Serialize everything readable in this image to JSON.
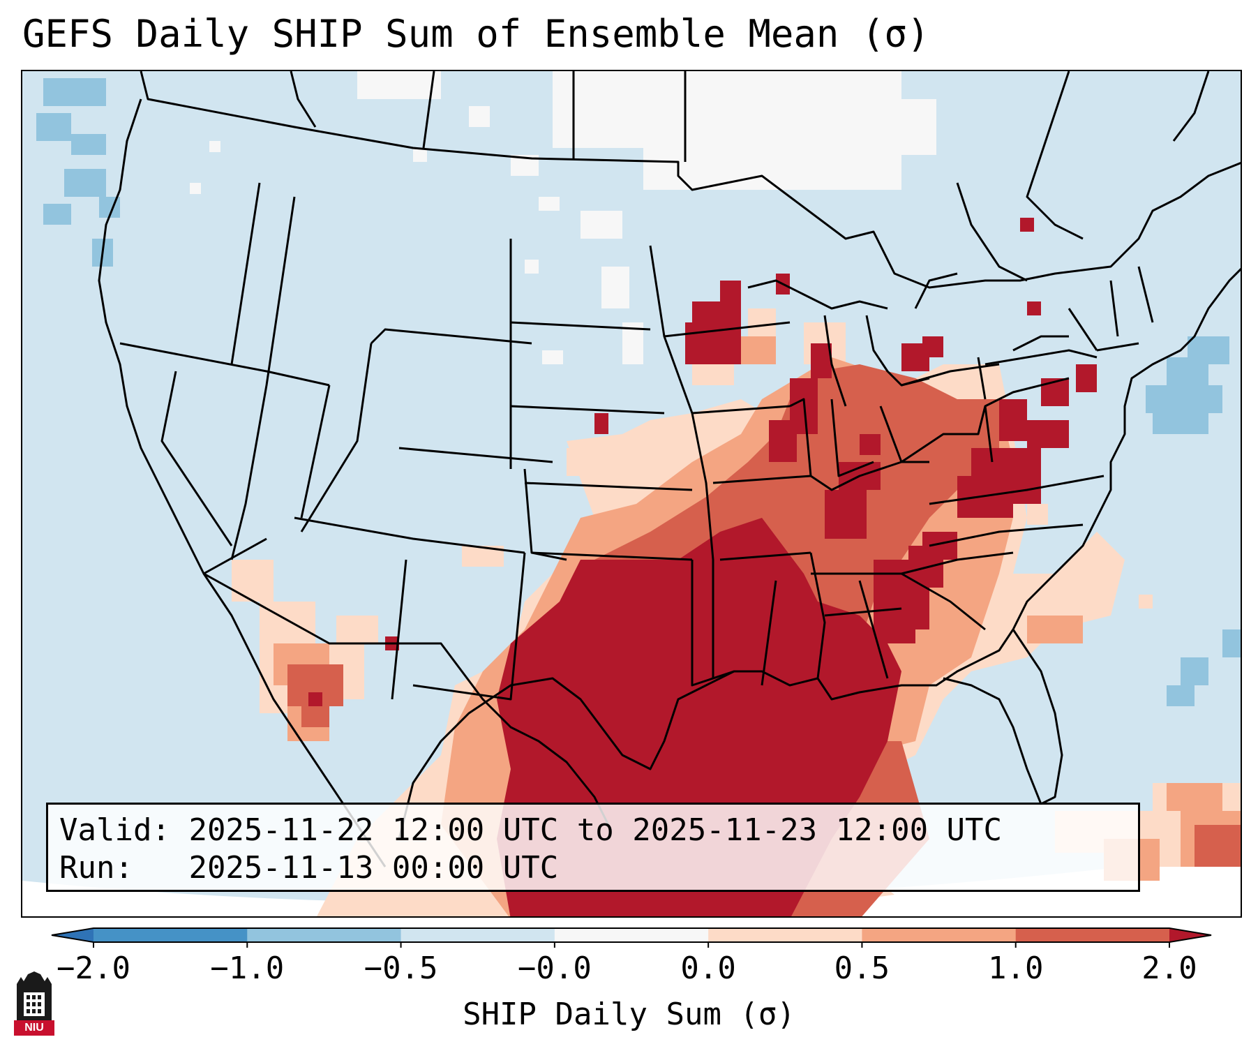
{
  "title": "GEFS Daily SHIP Sum of Ensemble Mean (σ)",
  "info": {
    "valid_label": "Valid:",
    "valid_value": "2025-11-22 12:00 UTC to 2025-11-23 12:00 UTC",
    "run_label": "Run:",
    "run_value": "2025-11-13 00:00 UTC"
  },
  "colorbar": {
    "label": "SHIP Daily Sum (σ)",
    "ticks": [
      "−2.0",
      "−1.0",
      "−0.5",
      "−0.0",
      "0.0",
      "0.5",
      "1.0",
      "2.0"
    ],
    "bins": [
      {
        "from": "-inf",
        "to": -2.0,
        "color": "#2f73b6"
      },
      {
        "from": -2.0,
        "to": -1.0,
        "color": "#4592c6"
      },
      {
        "from": -1.0,
        "to": -0.5,
        "color": "#92c4de"
      },
      {
        "from": -0.5,
        "to": -0.0,
        "color": "#d1e5f0"
      },
      {
        "from": -0.0,
        "to": 0.0,
        "color": "#f7f7f7"
      },
      {
        "from": 0.0,
        "to": 0.5,
        "color": "#fddbc7"
      },
      {
        "from": 0.5,
        "to": 1.0,
        "color": "#f4a582"
      },
      {
        "from": 1.0,
        "to": 2.0,
        "color": "#d6604d"
      },
      {
        "from": 2.0,
        "to": "inf",
        "color": "#b2182b"
      }
    ]
  },
  "map": {
    "region": "Continental United States",
    "projection": "Lambert Conformal",
    "boundaries": [
      "coastlines",
      "country borders",
      "state borders"
    ],
    "field": "SHIP daily sum, ensemble mean",
    "highlights": [
      {
        "area": "Texas / Gulf of Mexico",
        "level": "2.0+"
      },
      {
        "area": "Louisiana / Mississippi / Alabama",
        "level": "1.0 to 2.0+"
      },
      {
        "area": "Ohio Valley / Mid-Atlantic",
        "level": "0.5 to 2.0"
      },
      {
        "area": "Upper Midwest (Wisconsin)",
        "level": "1.0 to 2.0+"
      },
      {
        "area": "Western US / Plains",
        "level": "-0.5 to 0.0"
      }
    ]
  },
  "logo": {
    "text": "NIU"
  }
}
